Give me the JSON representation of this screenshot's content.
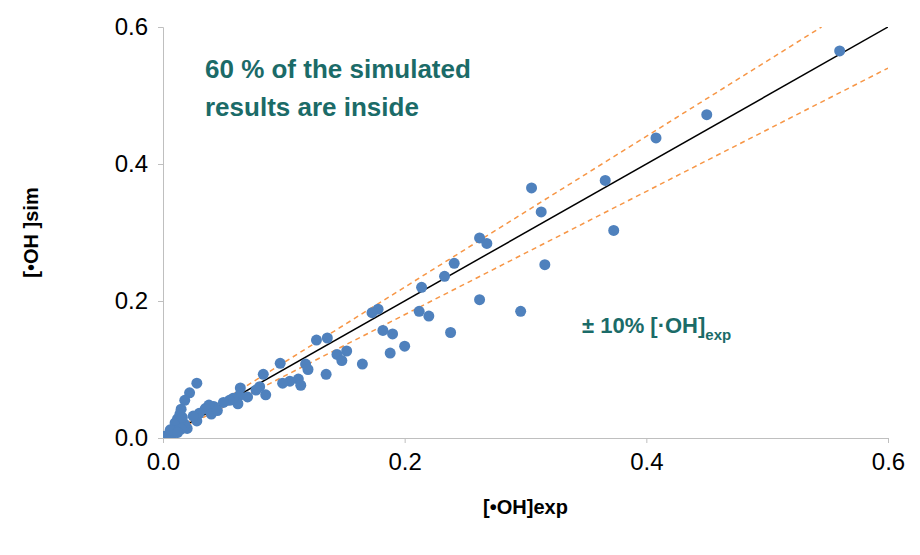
{
  "chart_data": {
    "type": "scatter",
    "x_label": "[•OH]exp",
    "y_label": "[•OH ]sim",
    "xlim": [
      0,
      0.6
    ],
    "ylim": [
      0,
      0.6
    ],
    "xticks": [
      {
        "value": 0,
        "label": "0.0"
      },
      0.2,
      0.4,
      0.6
    ],
    "yticks": [
      {
        "value": 0,
        "label": "0.0"
      },
      0.2,
      0.4,
      0.6
    ],
    "grid": false,
    "series": [
      {
        "type": "scatter",
        "color": "#4f81bd",
        "marker": "circle",
        "x": [
          0.56,
          0.45,
          0.408,
          0.366,
          0.373,
          0.305,
          0.313,
          0.316,
          0.296,
          0.262,
          0.268,
          0.262,
          0.241,
          0.233,
          0.238,
          0.214,
          0.22,
          0.212,
          0.19,
          0.188,
          0.2,
          0.178,
          0.173,
          0.182,
          0.165,
          0.152,
          0.144,
          0.148,
          0.136,
          0.127,
          0.135,
          0.118,
          0.12,
          0.112,
          0.114,
          0.105,
          0.097,
          0.099,
          0.083,
          0.085,
          0.08,
          0.077,
          0.064,
          0.063,
          0.062,
          0.058,
          0.055,
          0.05,
          0.042,
          0.038,
          0.035,
          0.03,
          0.028,
          0.022,
          0.028,
          0.025,
          0.018,
          0.015,
          0.014,
          0.012,
          0.01,
          0.02,
          0.018,
          0.015,
          0.01,
          0.008,
          0.005,
          0.003,
          0.002,
          0.006,
          0.012,
          0.016,
          0.04,
          0.045,
          0.07
        ],
        "values": [
          0.565,
          0.472,
          0.438,
          0.376,
          0.303,
          0.365,
          0.33,
          0.253,
          0.185,
          0.292,
          0.284,
          0.202,
          0.255,
          0.236,
          0.154,
          0.22,
          0.178,
          0.185,
          0.152,
          0.124,
          0.134,
          0.188,
          0.183,
          0.157,
          0.108,
          0.127,
          0.122,
          0.113,
          0.146,
          0.143,
          0.093,
          0.108,
          0.1,
          0.086,
          0.077,
          0.083,
          0.109,
          0.08,
          0.093,
          0.063,
          0.075,
          0.07,
          0.073,
          0.062,
          0.05,
          0.058,
          0.055,
          0.052,
          0.046,
          0.048,
          0.043,
          0.036,
          0.08,
          0.066,
          0.025,
          0.032,
          0.055,
          0.042,
          0.035,
          0.028,
          0.022,
          0.014,
          0.02,
          0.013,
          0.01,
          0.006,
          0.004,
          0.002,
          0.003,
          0.012,
          0.008,
          0.03,
          0.035,
          0.04,
          0.06
        ]
      },
      {
        "type": "line",
        "color": "#000000",
        "line_style": "solid",
        "x": [
          0,
          0.6
        ],
        "values": [
          0,
          0.6
        ]
      },
      {
        "type": "line",
        "color": "#f79646",
        "line_style": "dashed",
        "x": [
          0,
          0.545
        ],
        "values": [
          0,
          0.6
        ]
      },
      {
        "type": "line",
        "color": "#f79646",
        "line_style": "dashed",
        "x": [
          0,
          0.6
        ],
        "values": [
          0,
          0.54
        ]
      }
    ],
    "annotations": [
      {
        "lines": [
          "60 % of the simulated",
          "results are inside"
        ],
        "color": "#1b6b68"
      },
      {
        "text": "± 10% [·OH]",
        "subscript": "exp",
        "color": "#1b6b68"
      }
    ]
  }
}
